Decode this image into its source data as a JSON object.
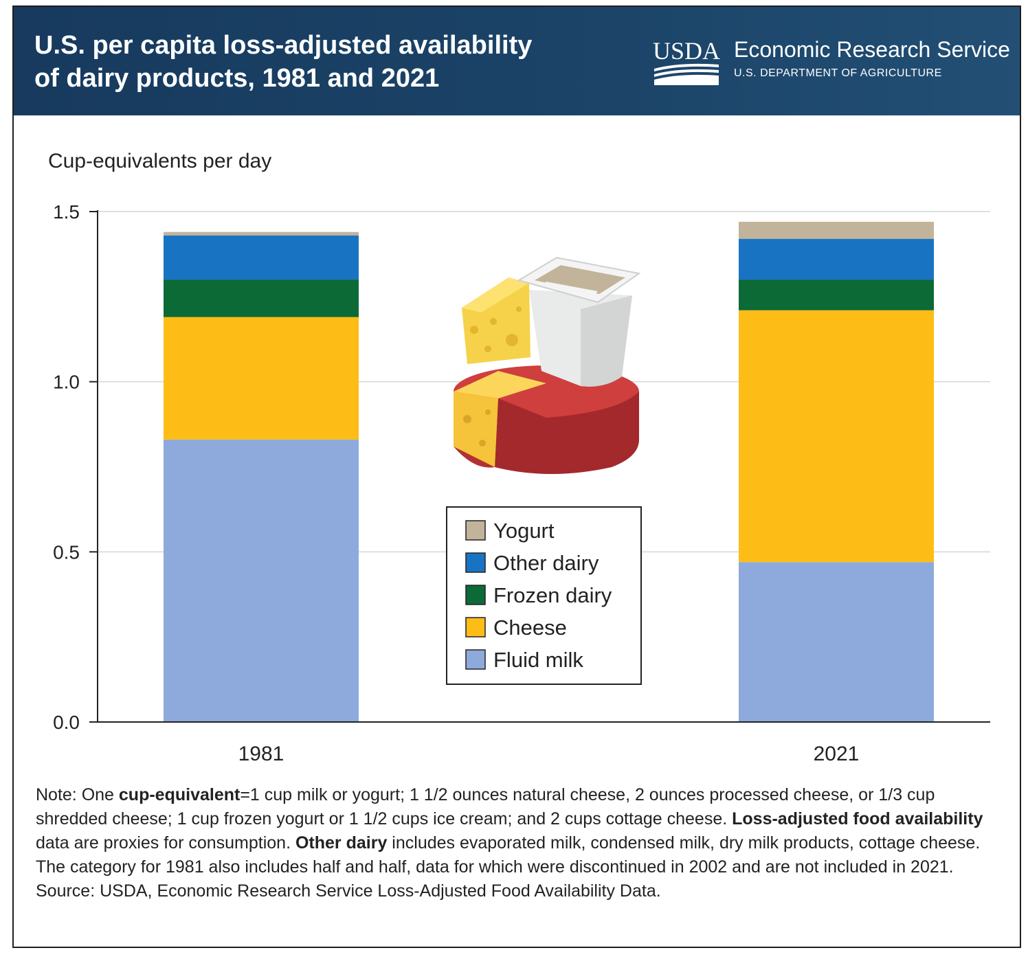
{
  "header": {
    "title_line1": "U.S. per capita loss-adjusted availability",
    "title_line2": "of dairy products, 1981 and 2021",
    "logo_text": "USDA",
    "agency": "Economic Research Service",
    "department": "U.S. DEPARTMENT OF AGRICULTURE"
  },
  "colors": {
    "header_bg": "#1b4468",
    "yogurt": "#c2b49a",
    "other_dairy": "#1874c3",
    "frozen_dairy": "#0b6a36",
    "cheese": "#fdbd16",
    "fluid_milk": "#8eaadc"
  },
  "chart_data": {
    "type": "bar",
    "stacked": true,
    "title": "U.S. per capita loss-adjusted availability of dairy products, 1981 and 2021",
    "ylabel": "Cup-equivalents per day",
    "xlabel": "",
    "ylim": [
      0,
      1.5
    ],
    "yticks": [
      "0.0",
      "0.5",
      "1.0",
      "1.5"
    ],
    "ytick_values": [
      0,
      0.5,
      1.0,
      1.5
    ],
    "grid": true,
    "categories": [
      "1981",
      "2021"
    ],
    "series": [
      {
        "name": "Fluid milk",
        "values": [
          0.83,
          0.47
        ]
      },
      {
        "name": "Cheese",
        "values": [
          0.36,
          0.74
        ]
      },
      {
        "name": "Frozen dairy",
        "values": [
          0.11,
          0.09
        ]
      },
      {
        "name": "Other dairy",
        "values": [
          0.13,
          0.12
        ]
      },
      {
        "name": "Yogurt",
        "values": [
          0.01,
          0.05
        ]
      }
    ],
    "legend": [
      "Yogurt",
      "Other dairy",
      "Frozen dairy",
      "Cheese",
      "Fluid milk"
    ],
    "legend_position": "center"
  },
  "notes": {
    "line_a_prefix": "Note: One ",
    "cup_equivalent_bold": "cup-equivalent",
    "line_a_rest": "=1 cup milk or yogurt; 1 1/2 ounces natural cheese, 2 ounces processed cheese, or 1/3 cup shredded cheese; 1 cup frozen yogurt or 1 1/2 cups ice cream; and 2 cups cottage cheese.",
    "lafa_bold": "Loss-adjusted food availability",
    "lafa_rest": " data are proxies for consumption. ",
    "other_dairy_bold": "Other dairy",
    "other_dairy_rest": " includes evaporated milk, condensed milk, dry milk products, cottage cheese. The category for 1981 also includes half and half, data for which were discontinued in 2002 and are not included in 2021.",
    "source": "Source: USDA, Economic Research Service Loss-Adjusted Food Availability Data."
  }
}
